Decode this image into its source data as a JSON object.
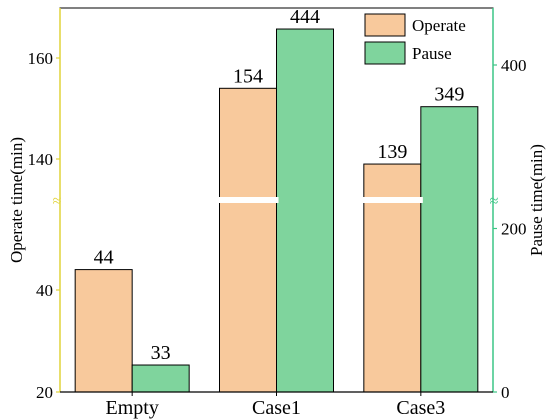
{
  "chart_data": {
    "type": "bar",
    "categories": [
      "Empty",
      "Case1",
      "Case3"
    ],
    "series": [
      {
        "name": "Operate",
        "axis": "left",
        "color": "#f8c99c",
        "values": [
          44,
          154,
          139
        ],
        "labels": [
          "44",
          "154",
          "139"
        ]
      },
      {
        "name": "Pause",
        "axis": "right",
        "color": "#7fd49d",
        "values": [
          33,
          444,
          349
        ],
        "labels": [
          "33",
          "444",
          "349"
        ]
      }
    ],
    "ylabel_left": "Operate time(min)",
    "ylabel_right": "Pause time(min)",
    "left_axis": {
      "broken": true,
      "lower_segment": [
        20,
        50
      ],
      "upper_segment": [
        130,
        170
      ],
      "ticks": [
        20,
        40,
        140,
        160
      ],
      "tick_labels": [
        "20",
        "40",
        "140",
        "160"
      ],
      "color": "#e0d33a"
    },
    "right_axis": {
      "ylim": [
        0,
        480
      ],
      "ticks": [
        0,
        200,
        400
      ],
      "tick_labels": [
        "0",
        "200",
        "400"
      ],
      "color": "#3cc585"
    },
    "break_mark": "≈",
    "legend": {
      "position": "top-right",
      "entries": [
        "Operate",
        "Pause"
      ]
    },
    "grid": false
  }
}
